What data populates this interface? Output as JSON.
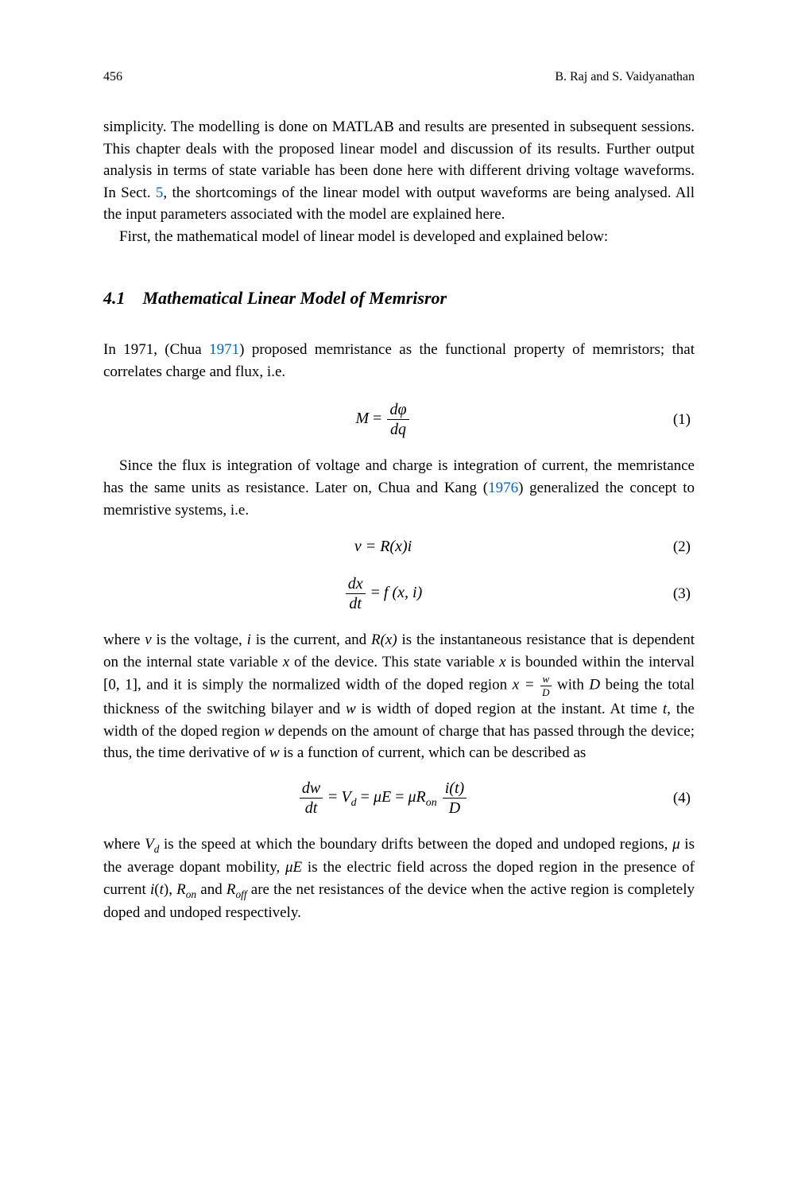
{
  "header": {
    "page_number": "456",
    "authors": "B. Raj and S. Vaidyanathan"
  },
  "paragraphs": {
    "p1": "simplicity. The modelling is done on MATLAB and results are presented in subsequent sessions. This chapter deals with the proposed linear model and discussion of its results. Further output analysis in terms of state variable has been done here with different driving voltage waveforms. In Sect. ",
    "p1_link": "5",
    "p1_cont": ", the shortcomings of the linear model with output waveforms are being analysed. All the input parameters associated with the model are explained here.",
    "p2": "First, the mathematical model of linear model is developed and explained below:"
  },
  "section": {
    "number": "4.1",
    "title": "Mathematical Linear Model of Memrisror"
  },
  "body": {
    "p3_a": "In 1971, (Chua ",
    "p3_link": "1971",
    "p3_b": ") proposed memristance as the functional property of memristors; that correlates charge and flux, i.e.",
    "p4_a": "Since the flux is integration of voltage and charge is integration of current, the memristance has the same units as resistance. Later on, Chua and Kang (",
    "p4_link": "1976",
    "p4_b": ") generalized the concept to memristive systems, i.e.",
    "p5_a": "where ",
    "p5_v": "v",
    "p5_b": " is the voltage, ",
    "p5_i": "i",
    "p5_c": " is the current, and ",
    "p5_rx": "R(x)",
    "p5_d": " is the instantaneous resistance that is dependent on the internal state variable ",
    "p5_x1": "x",
    "p5_e": " of the device. This state variable ",
    "p5_x2": "x",
    "p5_f": " is bounded within the interval [0, 1], and it is simply the normalized width of the doped region ",
    "p5_xeq": "x = ",
    "p5_g": " with ",
    "p5_D": "D",
    "p5_h": " being the total thickness of the switching bilayer and ",
    "p5_w1": "w",
    "p5_i2": " is width of doped region at the instant. At time ",
    "p5_t": "t",
    "p5_j": ", the width of the doped region ",
    "p5_w2": "w",
    "p5_k": " depends on the amount of charge that has passed through the device; thus, the time derivative of ",
    "p5_w3": "w",
    "p5_l": " is a function of current, which can be described as",
    "p6_a": "where ",
    "p6_vd": "V",
    "p6_vd_sub": "d",
    "p6_b": " is the speed at which the boundary drifts between the doped and undoped regions, ",
    "p6_mu": "μ",
    "p6_c": " is the average dopant mobility, ",
    "p6_muE": "μE",
    "p6_d": " is the electric field across the doped region in the presence of current ",
    "p6_it": "i",
    "p6_t": "t",
    "p6_e": ", ",
    "p6_ron": "R",
    "p6_ron_sub": "on",
    "p6_f": " and ",
    "p6_roff": "R",
    "p6_roff_sub": "off",
    "p6_g": " are the net resistances of the device when the active region is completely doped and undoped respectively."
  },
  "equations": {
    "eq1": {
      "M": "M",
      "eq": " = ",
      "num": "dφ",
      "den": "dq",
      "label": "(1)"
    },
    "eq2": {
      "lhs": "v = R(x)i",
      "label": "(2)"
    },
    "eq3": {
      "num": "dx",
      "den": "dt",
      "eq": " = ",
      "rhs": "f (x, i)",
      "label": "(3)"
    },
    "eq4": {
      "num1": "dw",
      "den1": "dt",
      "eq1": " = ",
      "vd": "V",
      "vd_sub": "d",
      "eq2": " = ",
      "muE": "μE",
      "eq3": " = ",
      "muR": "μR",
      "on_sub": "on",
      "num2": "i(t)",
      "den2": "D",
      "label": "(4)"
    },
    "frac_wd": {
      "num": "w",
      "den": "D"
    }
  }
}
